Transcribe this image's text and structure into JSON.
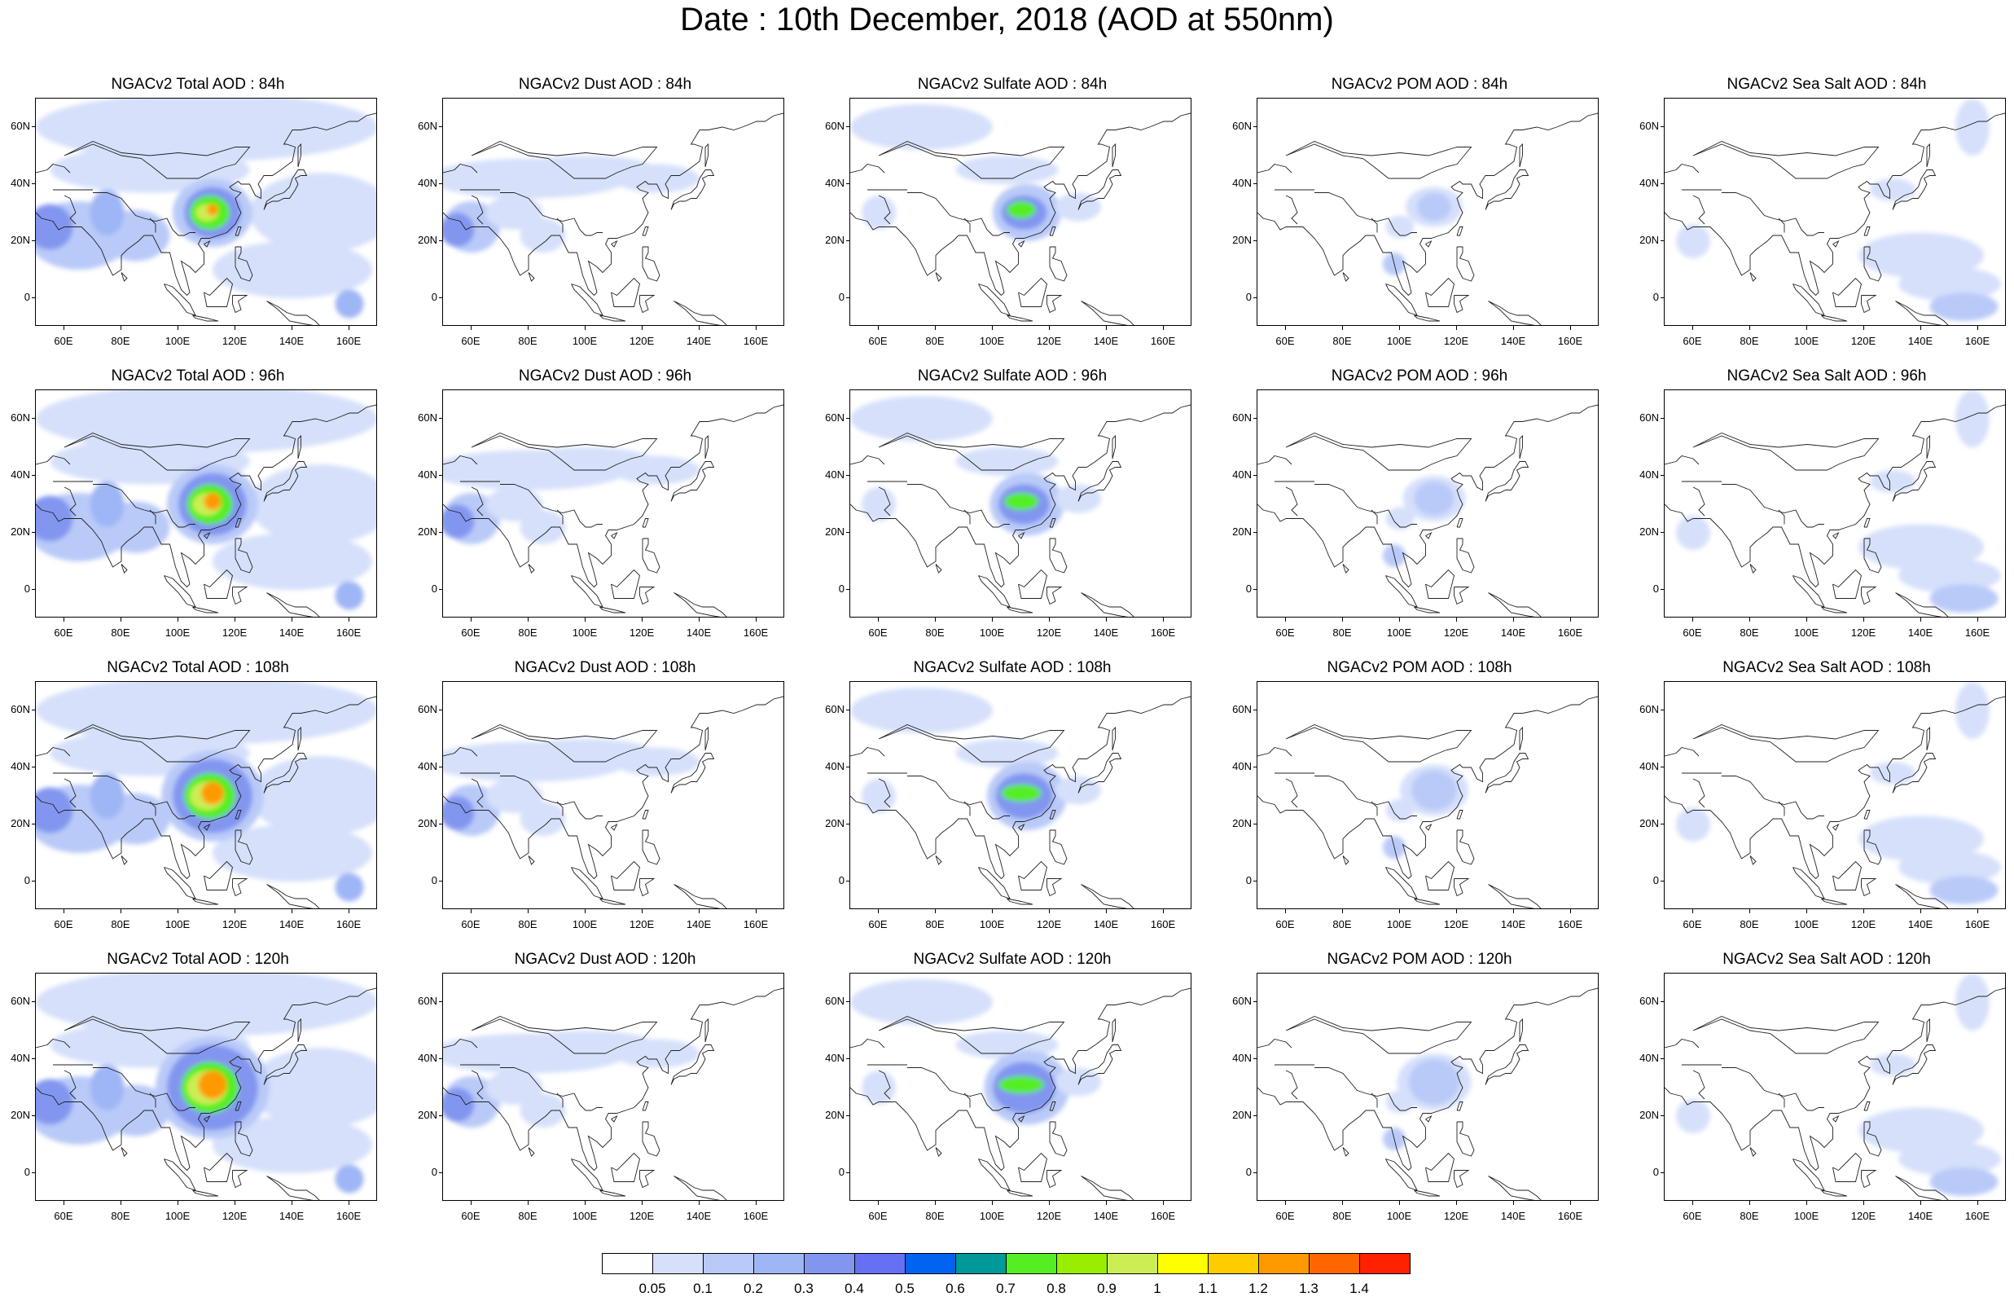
{
  "title": "Date : 10th December, 2018 (AOD at 550nm)",
  "lat_labels": [
    "60N",
    "40N",
    "20N",
    "0"
  ],
  "lon_labels": [
    "60E",
    "80E",
    "100E",
    "120E",
    "140E",
    "160E"
  ],
  "panels": [
    {
      "title": "NGACv2 Total AOD : 84h",
      "species": "total",
      "lead_hour": 84
    },
    {
      "title": "NGACv2 Dust AOD : 84h",
      "species": "dust",
      "lead_hour": 84
    },
    {
      "title": "NGACv2 Sulfate AOD : 84h",
      "species": "sulfate",
      "lead_hour": 84
    },
    {
      "title": "NGACv2 POM AOD : 84h",
      "species": "pom",
      "lead_hour": 84
    },
    {
      "title": "NGACv2 Sea Salt AOD : 84h",
      "species": "seasalt",
      "lead_hour": 84
    },
    {
      "title": "NGACv2 Total AOD : 96h",
      "species": "total",
      "lead_hour": 96
    },
    {
      "title": "NGACv2 Dust AOD : 96h",
      "species": "dust",
      "lead_hour": 96
    },
    {
      "title": "NGACv2 Sulfate AOD : 96h",
      "species": "sulfate",
      "lead_hour": 96
    },
    {
      "title": "NGACv2 POM AOD : 96h",
      "species": "pom",
      "lead_hour": 96
    },
    {
      "title": "NGACv2 Sea Salt AOD : 96h",
      "species": "seasalt",
      "lead_hour": 96
    },
    {
      "title": "NGACv2 Total AOD : 108h",
      "species": "total",
      "lead_hour": 108
    },
    {
      "title": "NGACv2 Dust AOD : 108h",
      "species": "dust",
      "lead_hour": 108
    },
    {
      "title": "NGACv2 Sulfate AOD : 108h",
      "species": "sulfate",
      "lead_hour": 108
    },
    {
      "title": "NGACv2 POM AOD : 108h",
      "species": "pom",
      "lead_hour": 108
    },
    {
      "title": "NGACv2 Sea Salt AOD : 108h",
      "species": "seasalt",
      "lead_hour": 108
    },
    {
      "title": "NGACv2 Total AOD : 120h",
      "species": "total",
      "lead_hour": 120
    },
    {
      "title": "NGACv2 Dust AOD : 120h",
      "species": "dust",
      "lead_hour": 120
    },
    {
      "title": "NGACv2 Sulfate AOD : 120h",
      "species": "sulfate",
      "lead_hour": 120
    },
    {
      "title": "NGACv2 POM AOD : 120h",
      "species": "pom",
      "lead_hour": 120
    },
    {
      "title": "NGACv2 Sea Salt  AOD : 120h",
      "species": "seasalt",
      "lead_hour": 120
    }
  ],
  "colorbar": {
    "labels": [
      "0.05",
      "0.1",
      "0.2",
      "0.3",
      "0.4",
      "0.5",
      "0.6",
      "0.7",
      "0.8",
      "0.9",
      "1",
      "1.1",
      "1.2",
      "1.3",
      "1.4"
    ],
    "colors": [
      "#ffffff",
      "#d6e0fb",
      "#b9caf8",
      "#9fb6f6",
      "#8296f0",
      "#6670f2",
      "#0064f0",
      "#009999",
      "#55ee22",
      "#99ee00",
      "#ccee55",
      "#ffff00",
      "#ffcc00",
      "#ff9900",
      "#ff6600",
      "#ff2200"
    ]
  }
}
